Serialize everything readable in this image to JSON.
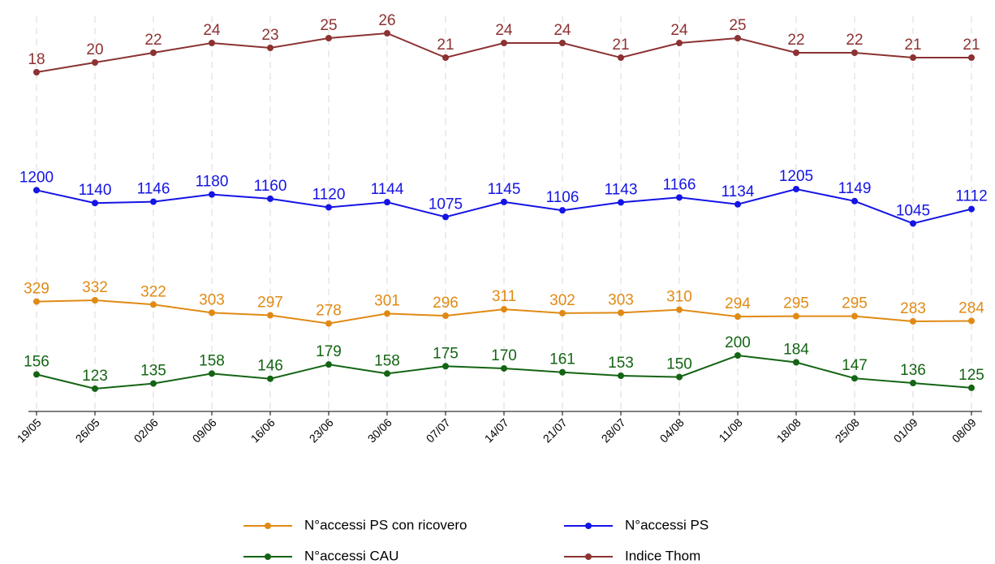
{
  "chart_data": {
    "type": "line",
    "categories": [
      "19/05",
      "26/05",
      "02/06",
      "09/06",
      "16/06",
      "23/06",
      "30/06",
      "07/07",
      "14/07",
      "21/07",
      "28/07",
      "04/08",
      "11/08",
      "18/08",
      "25/08",
      "01/09",
      "08/09"
    ],
    "grid": true,
    "series": [
      {
        "name": "N°accessi PS con ricovero",
        "color": "#e08a14",
        "values": [
          329,
          332,
          322,
          303,
          297,
          278,
          301,
          296,
          311,
          302,
          303,
          310,
          294,
          295,
          295,
          283,
          284
        ]
      },
      {
        "name": "N°accessi PS",
        "color": "#1414e6",
        "values": [
          1200,
          1140,
          1146,
          1180,
          1160,
          1120,
          1144,
          1075,
          1145,
          1106,
          1143,
          1166,
          1134,
          1205,
          1149,
          1045,
          1112
        ]
      },
      {
        "name": "N°accessi CAU",
        "color": "#146414",
        "values": [
          156,
          123,
          135,
          158,
          146,
          179,
          158,
          175,
          170,
          161,
          153,
          150,
          200,
          184,
          147,
          136,
          125
        ]
      },
      {
        "name": "Indice Thom",
        "color": "#8c3232",
        "values": [
          18,
          20,
          22,
          24,
          23,
          25,
          26,
          21,
          24,
          24,
          21,
          24,
          25,
          22,
          22,
          21,
          21
        ]
      }
    ]
  }
}
